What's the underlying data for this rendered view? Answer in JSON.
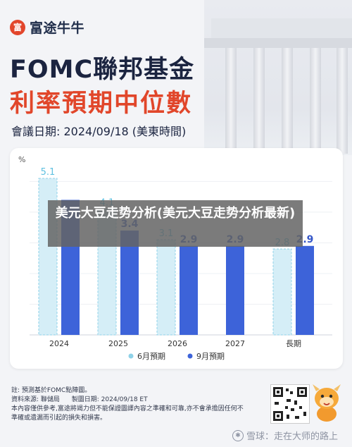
{
  "brand": {
    "name": "富途牛牛",
    "logo_glyph": "富"
  },
  "title": {
    "line1": "FOMC聯邦基金",
    "line2": "利率預期中位數"
  },
  "meeting_date": "會議日期: 2024/09/18 (美東時間)",
  "overlay_text": "美元大豆走势分析(美元大豆走势分析最新)",
  "chart_data": {
    "type": "bar",
    "ylabel": "%",
    "categories": [
      "2024",
      "2025",
      "2026",
      "2027",
      "長期"
    ],
    "series": [
      {
        "name": "6月預期",
        "values": [
          5.1,
          4.1,
          3.1,
          null,
          2.8
        ],
        "color": "#d5eef7",
        "stroke": "#8fd2e8",
        "label_color": "#5fc0e0"
      },
      {
        "name": "9月預期",
        "values": [
          4.4,
          3.4,
          2.9,
          2.9,
          2.9
        ],
        "color": "#3d63d9",
        "stroke": "#3d63d9",
        "label_color": "#3456c8"
      }
    ],
    "data_labels": {
      "6月預期": [
        "5.1",
        "4.1",
        "3.1",
        "",
        "2.8"
      ],
      "9月預期": [
        "",
        "3.4",
        "2.9",
        "2.9",
        "2.9"
      ]
    },
    "ylim": [
      0,
      5.5
    ],
    "grid": true,
    "legend_position": "bottom"
  },
  "footer": {
    "note": "註: 預測基於FOMC點陣圖。",
    "source": "資料來源: 聯儲局",
    "made": "製圖日期: 2024/09/18 ET",
    "disclaimer": "本內容僅供參考,富途將竭力但不能保證圖譯內容之準確和可靠,亦不會承擔因任何不準確或遺漏而引起的損失和損害。"
  },
  "watermark": "雪球：走在大师的路上"
}
